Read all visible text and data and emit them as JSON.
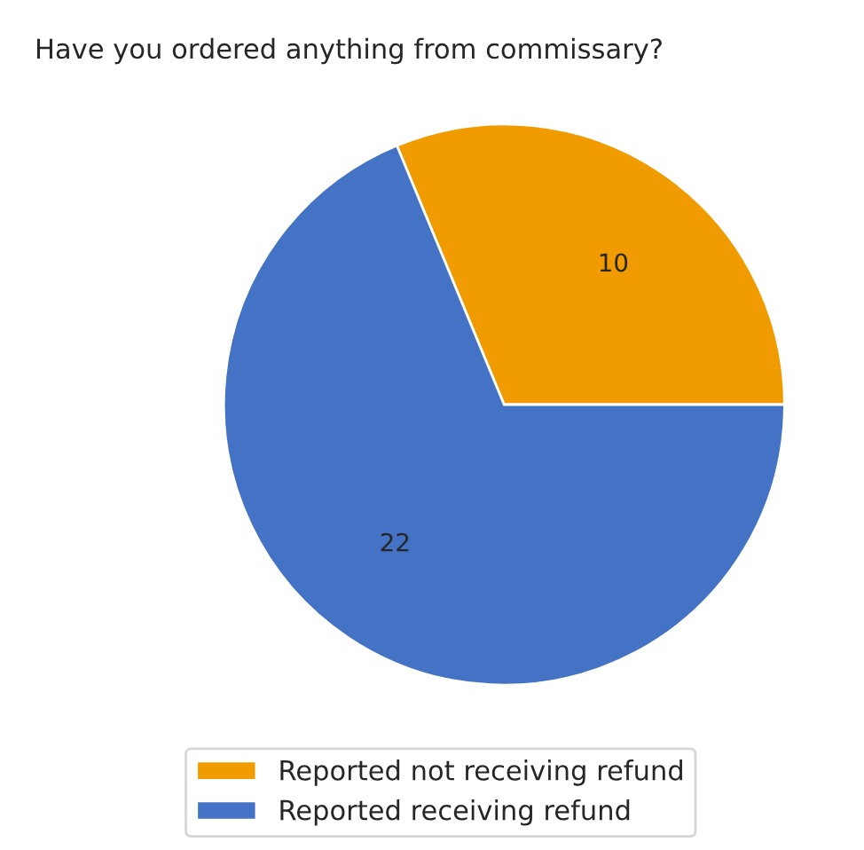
{
  "chart_data": {
    "type": "pie",
    "title": "Have you ordered anything from commissary?",
    "categories": [
      "Reported not receiving refund",
      "Reported receiving refund"
    ],
    "values": [
      10,
      22
    ],
    "colors": [
      "#f09c00",
      "#4472c4"
    ],
    "data_labels": true,
    "legend": "bottom"
  }
}
